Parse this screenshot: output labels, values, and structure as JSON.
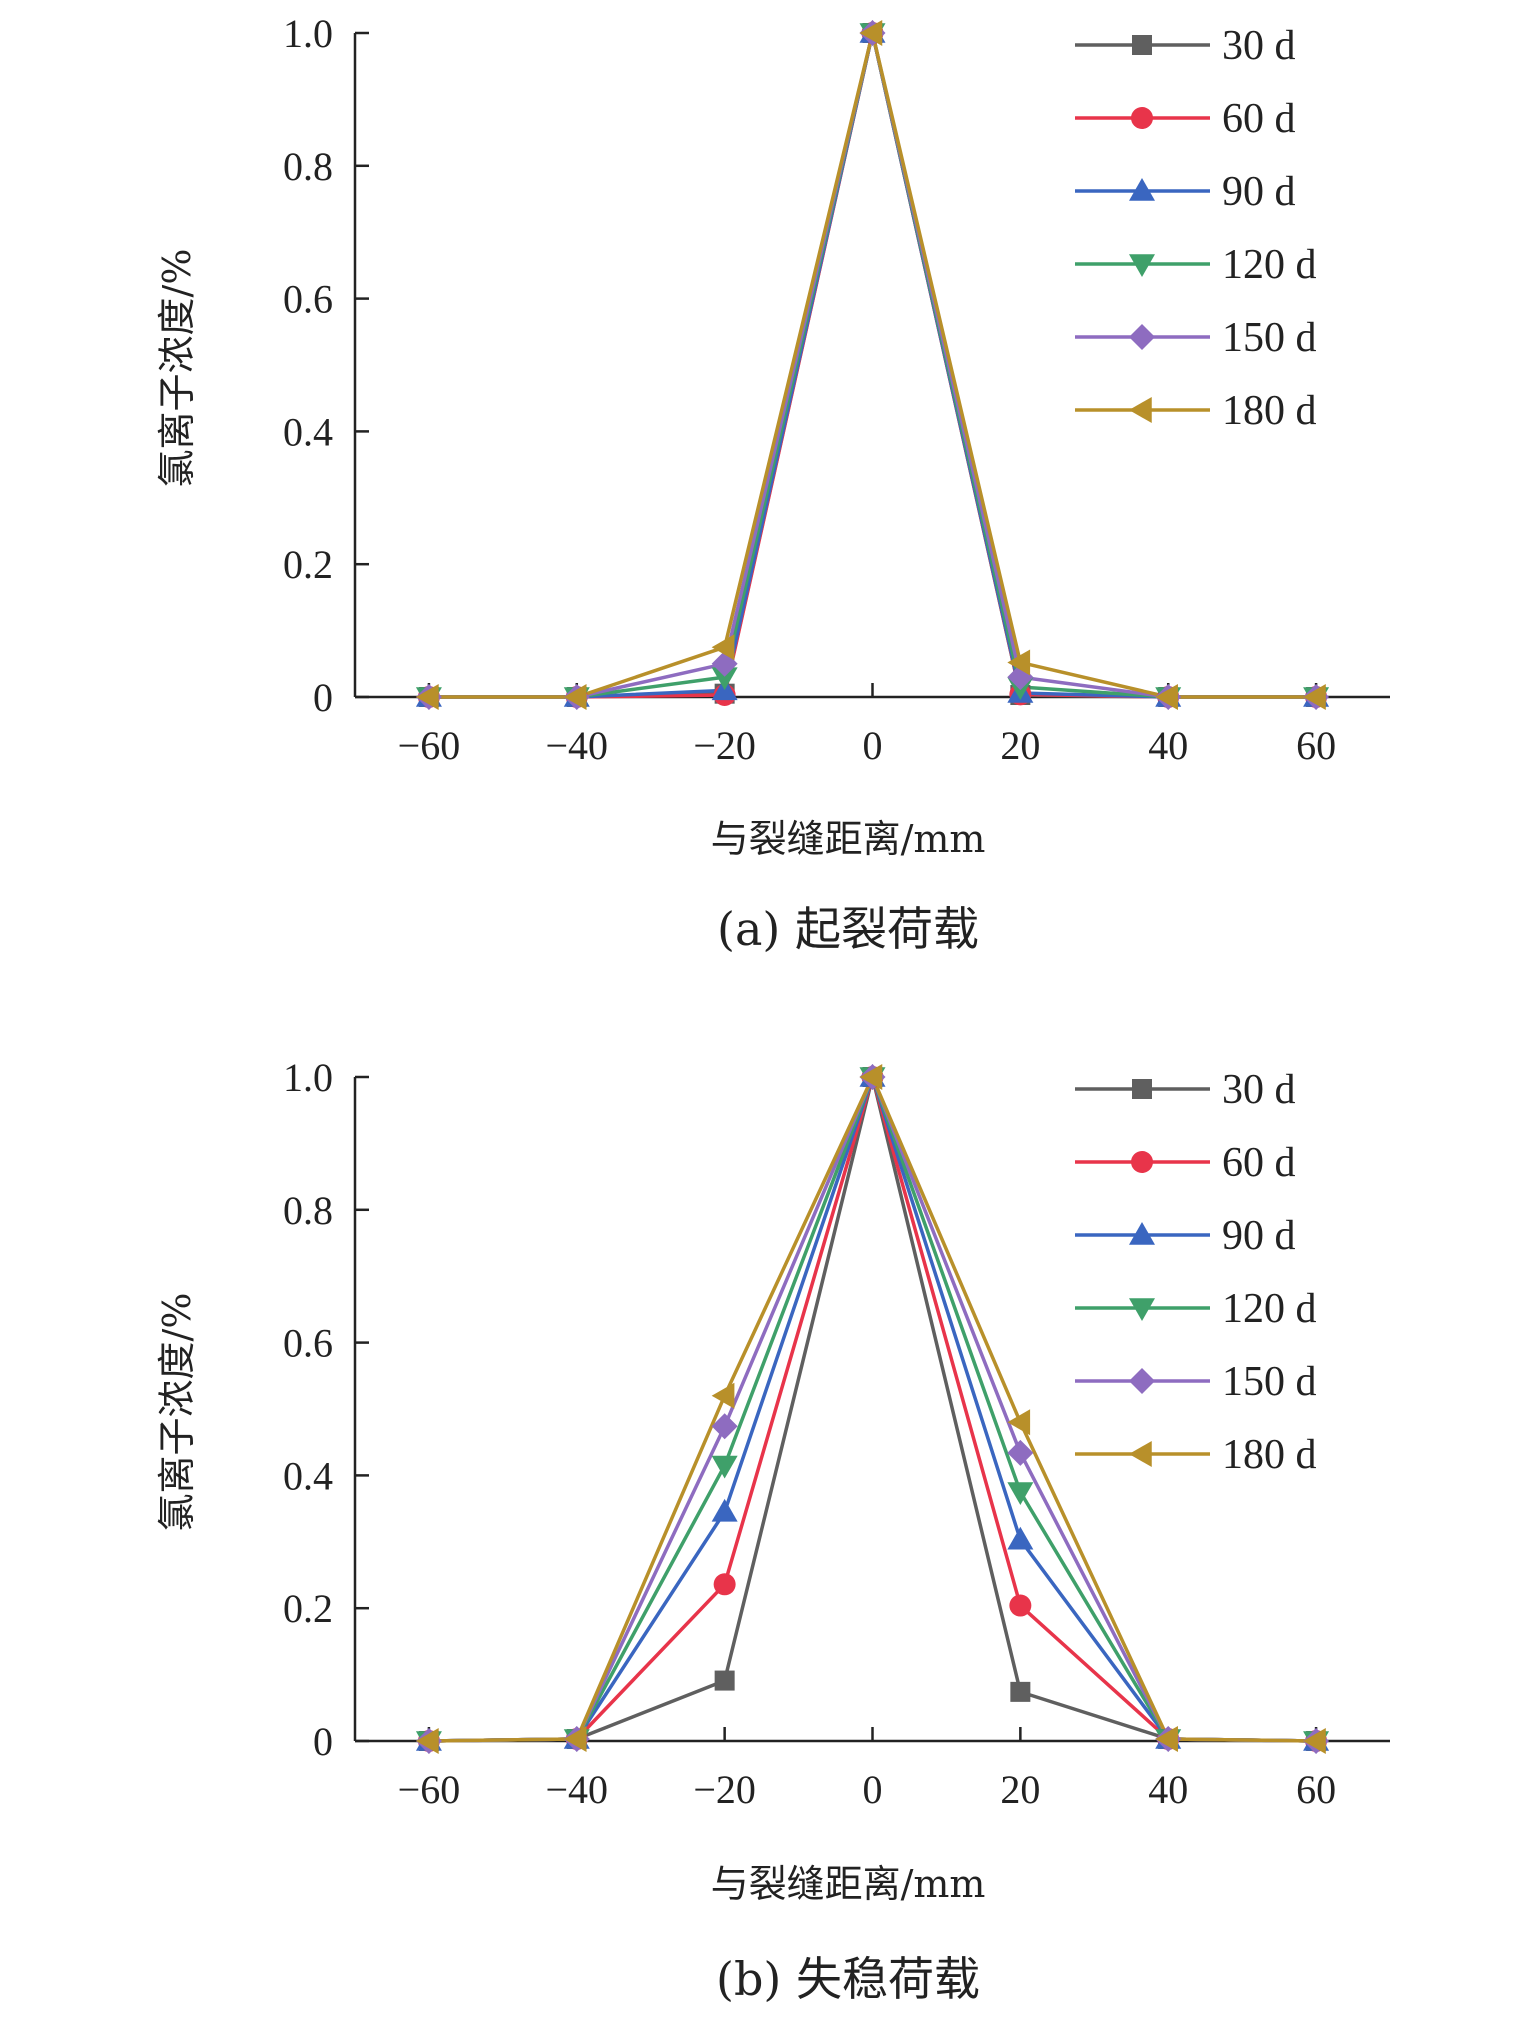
{
  "chart_data": [
    {
      "type": "line",
      "caption": "(a) 起裂荷载",
      "xlabel": "与裂缝距离/mm",
      "ylabel": "氯离子浓度/%",
      "xlim": [
        -70,
        70
      ],
      "ylim": [
        0,
        1.0
      ],
      "xticks": [
        -60,
        -40,
        -20,
        0,
        20,
        40,
        60
      ],
      "xtick_labels": [
        "−60",
        "−40",
        "−20",
        "0",
        "20",
        "40",
        "60"
      ],
      "yticks": [
        0,
        0.2,
        0.4,
        0.6,
        0.8,
        1.0
      ],
      "ytick_labels": [
        "0",
        "0.2",
        "0.4",
        "0.6",
        "0.8",
        "1.0"
      ],
      "grid": false,
      "legend_position": "top-right",
      "x": [
        -60,
        -40,
        -20,
        0,
        20,
        40,
        60
      ],
      "series": [
        {
          "name": "30 d",
          "color": "#5f5f5f",
          "marker": "square",
          "values": [
            0,
            0,
            0.005,
            1.0,
            0.003,
            0,
            0
          ]
        },
        {
          "name": "60 d",
          "color": "#e8344a",
          "marker": "circle",
          "values": [
            0,
            0,
            0.003,
            1.0,
            0.004,
            0,
            0
          ]
        },
        {
          "name": "90 d",
          "color": "#3a66c0",
          "marker": "triangle-up",
          "values": [
            0,
            0,
            0.01,
            1.0,
            0.006,
            0,
            0
          ]
        },
        {
          "name": "120 d",
          "color": "#3fa06a",
          "marker": "triangle-down",
          "values": [
            0,
            0,
            0.03,
            1.0,
            0.015,
            0,
            0
          ]
        },
        {
          "name": "150 d",
          "color": "#8e6cc0",
          "marker": "diamond",
          "values": [
            0,
            0,
            0.05,
            1.0,
            0.03,
            0,
            0
          ]
        },
        {
          "name": "180 d",
          "color": "#b8902a",
          "marker": "triangle-left",
          "values": [
            0,
            0,
            0.075,
            1.0,
            0.052,
            0,
            0
          ]
        }
      ]
    },
    {
      "type": "line",
      "caption": "(b) 失稳荷载",
      "xlabel": "与裂缝距离/mm",
      "ylabel": "氯离子浓度/%",
      "xlim": [
        -70,
        70
      ],
      "ylim": [
        0,
        1.0
      ],
      "xticks": [
        -60,
        -40,
        -20,
        0,
        20,
        40,
        60
      ],
      "xtick_labels": [
        "−60",
        "−40",
        "−20",
        "0",
        "20",
        "40",
        "60"
      ],
      "yticks": [
        0,
        0.2,
        0.4,
        0.6,
        0.8,
        1.0
      ],
      "ytick_labels": [
        "0",
        "0.2",
        "0.4",
        "0.6",
        "0.8",
        "1.0"
      ],
      "grid": false,
      "legend_position": "top-right",
      "x": [
        -60,
        -40,
        -20,
        0,
        20,
        40,
        60
      ],
      "series": [
        {
          "name": "30 d",
          "color": "#5f5f5f",
          "marker": "square",
          "values": [
            0,
            0.003,
            0.091,
            1.0,
            0.074,
            0.003,
            0
          ]
        },
        {
          "name": "60 d",
          "color": "#e8344a",
          "marker": "circle",
          "values": [
            0,
            0.003,
            0.236,
            1.0,
            0.204,
            0.003,
            0
          ]
        },
        {
          "name": "90 d",
          "color": "#3a66c0",
          "marker": "triangle-up",
          "values": [
            0,
            0.003,
            0.345,
            1.0,
            0.303,
            0.003,
            0
          ]
        },
        {
          "name": "120 d",
          "color": "#3fa06a",
          "marker": "triangle-down",
          "values": [
            0,
            0.003,
            0.415,
            1.0,
            0.375,
            0.003,
            0
          ]
        },
        {
          "name": "150 d",
          "color": "#8e6cc0",
          "marker": "diamond",
          "values": [
            0,
            0.003,
            0.474,
            1.0,
            0.434,
            0.003,
            0
          ]
        },
        {
          "name": "180 d",
          "color": "#b8902a",
          "marker": "triangle-left",
          "values": [
            0,
            0.003,
            0.52,
            1.0,
            0.48,
            0.003,
            0
          ]
        }
      ]
    }
  ]
}
